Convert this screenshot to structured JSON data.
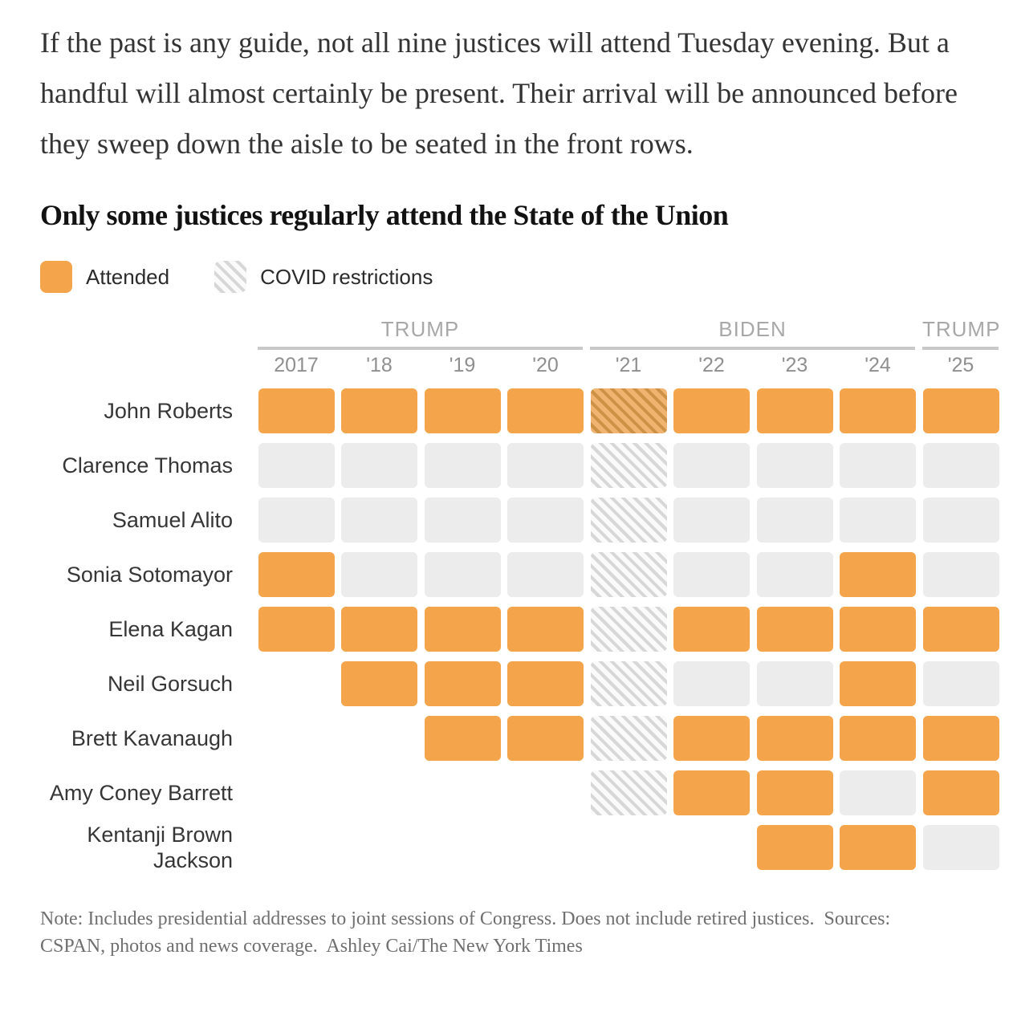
{
  "intro": {
    "text": "If the past is any guide, not all nine justices will attend Tuesday evening. But a handful will almost certainly be present. Their arrival will be announced before they sweep down the aisle to be seated in the front rows."
  },
  "chart": {
    "title": "Only some justices regularly attend the State of the Union",
    "legend": [
      {
        "label": "Attended",
        "swatch": "attended"
      },
      {
        "label": "COVID restrictions",
        "swatch": "covid"
      }
    ]
  },
  "chart_data": {
    "type": "heatmap",
    "title": "Only some justices regularly attend the State of the Union",
    "x_groups": [
      {
        "label": "TRUMP",
        "cols": 4
      },
      {
        "label": "BIDEN",
        "cols": 4
      },
      {
        "label": "TRUMP",
        "cols": 1
      }
    ],
    "x_labels": [
      "2017",
      "'18",
      "'19",
      "'20",
      "'21",
      "'22",
      "'23",
      "'24",
      "'25"
    ],
    "y_labels": [
      "John Roberts",
      "Clarence Thomas",
      "Samuel Alito",
      "Sonia Sotomayor",
      "Elena Kagan",
      "Neil Gorsuch",
      "Brett Kavanaugh",
      "Amy Coney Barrett",
      "Kentanji Brown Jackson"
    ],
    "state_legend": {
      "A": "attended",
      "X": "did not attend",
      "C": "COVID restrictions, did not attend",
      "CA": "attended under COVID restrictions",
      "": "not yet on the court"
    },
    "values": [
      [
        "A",
        "A",
        "A",
        "A",
        "CA",
        "A",
        "A",
        "A",
        "A"
      ],
      [
        "X",
        "X",
        "X",
        "X",
        "C",
        "X",
        "X",
        "X",
        "X"
      ],
      [
        "X",
        "X",
        "X",
        "X",
        "C",
        "X",
        "X",
        "X",
        "X"
      ],
      [
        "A",
        "X",
        "X",
        "X",
        "C",
        "X",
        "X",
        "A",
        "X"
      ],
      [
        "A",
        "A",
        "A",
        "A",
        "C",
        "A",
        "A",
        "A",
        "A"
      ],
      [
        "",
        "A",
        "A",
        "A",
        "C",
        "X",
        "X",
        "A",
        "X"
      ],
      [
        "",
        "",
        "A",
        "A",
        "C",
        "A",
        "A",
        "A",
        "A"
      ],
      [
        "",
        "",
        "",
        "",
        "C",
        "A",
        "A",
        "X",
        "A"
      ],
      [
        "",
        "",
        "",
        "",
        "",
        "",
        "A",
        "A",
        "X"
      ]
    ],
    "colors": {
      "attended": "#F4A44B",
      "not_attended": "#ECECEC",
      "covid_stripe": "#D7D7D7",
      "covid_background": "#FAFAFA",
      "covid_attended_background": "#F1B470",
      "covid_attended_stripe": "#CE9247"
    }
  },
  "footer": {
    "text": "Note: Includes presidential addresses to joint sessions of Congress. Does not include retired justices.  Sources: CSPAN, photos and news coverage.  Ashley Cai/The New York Times"
  }
}
